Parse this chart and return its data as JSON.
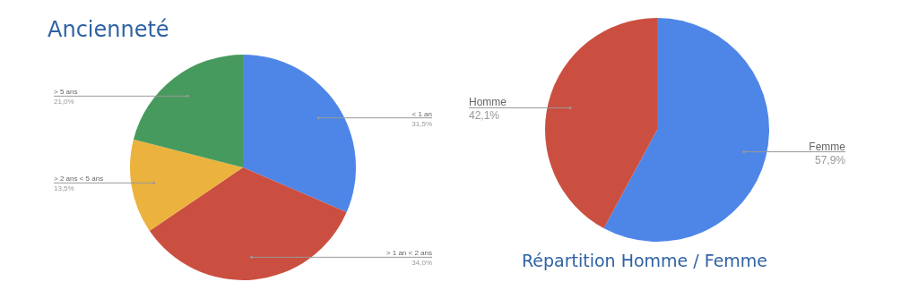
{
  "chart_data": [
    {
      "type": "pie",
      "title": "Ancienneté",
      "categories": [
        "< 1 an",
        "> 1 an < 2 ans",
        "> 2 ans < 5 ans",
        "> 5 ans"
      ],
      "values": [
        31.5,
        34.0,
        13.5,
        21.0
      ],
      "colors": [
        "#4e86e8",
        "#cb4f40",
        "#ebb33d",
        "#479a5e"
      ],
      "value_labels": [
        "31,5%",
        "34,0%",
        "13,5%",
        "21,0%"
      ]
    },
    {
      "type": "pie",
      "title": "Répartition Homme / Femme",
      "categories": [
        "Femme",
        "Homme"
      ],
      "values": [
        57.9,
        42.1
      ],
      "colors": [
        "#4e86e8",
        "#cb4f40"
      ],
      "value_labels": [
        "57,9%",
        "42,1%"
      ]
    }
  ]
}
